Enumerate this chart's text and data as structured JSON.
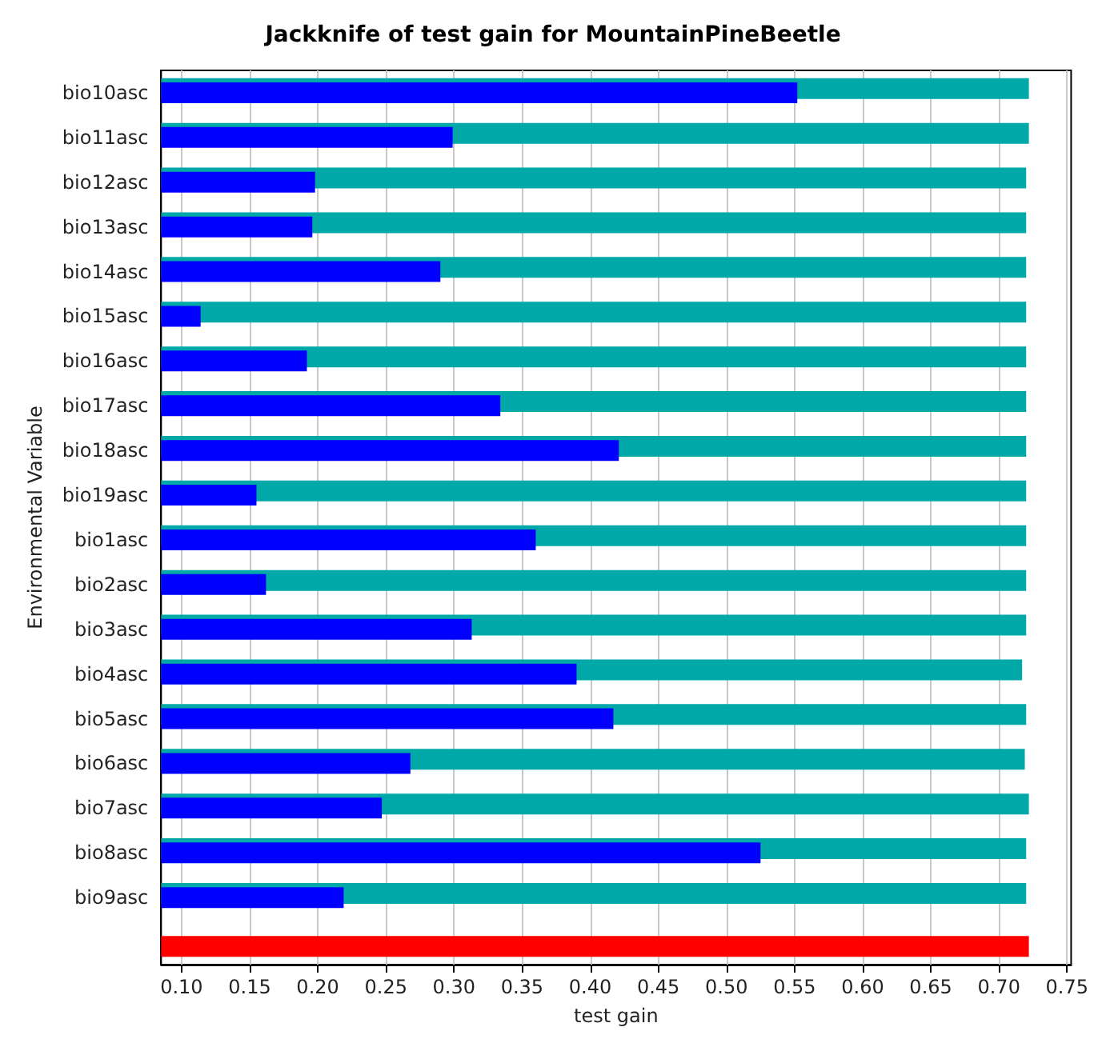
{
  "chart_data": {
    "type": "bar",
    "orientation": "horizontal",
    "title": "Jackknife of test gain for MountainPineBeetle",
    "xlabel": "test gain",
    "ylabel": "Environmental Variable",
    "categories": [
      "bio10asc",
      "bio11asc",
      "bio12asc",
      "bio13asc",
      "bio14asc",
      "bio15asc",
      "bio16asc",
      "bio17asc",
      "bio18asc",
      "bio19asc",
      "bio1asc",
      "bio2asc",
      "bio3asc",
      "bio4asc",
      "bio5asc",
      "bio6asc",
      "bio7asc",
      "bio8asc",
      "bio9asc",
      null
    ],
    "series": [
      {
        "color": "#00a8a8",
        "values": [
          0.722,
          0.722,
          0.72,
          0.72,
          0.72,
          0.72,
          0.72,
          0.72,
          0.72,
          0.72,
          0.72,
          0.72,
          0.72,
          0.717,
          0.72,
          0.719,
          0.722,
          0.72,
          0.72,
          null
        ]
      },
      {
        "color": "#0000ff",
        "values": [
          0.552,
          0.299,
          0.198,
          0.196,
          0.29,
          0.114,
          0.192,
          0.334,
          0.421,
          0.155,
          0.36,
          0.162,
          0.313,
          0.39,
          0.417,
          0.268,
          0.247,
          0.525,
          0.219,
          null
        ]
      },
      {
        "color": "#ff0000",
        "values": [
          null,
          null,
          null,
          null,
          null,
          null,
          null,
          null,
          null,
          null,
          null,
          null,
          null,
          null,
          null,
          null,
          null,
          null,
          null,
          0.722
        ]
      }
    ],
    "xlim": [
      0.085,
      0.753
    ],
    "xticks": [
      {
        "value": 0.1,
        "label": "0.10"
      },
      {
        "value": 0.15,
        "label": "0.15"
      },
      {
        "value": 0.2,
        "label": "0.20"
      },
      {
        "value": 0.25,
        "label": "0.25"
      },
      {
        "value": 0.3,
        "label": "0.30"
      },
      {
        "value": 0.35,
        "label": "0.35"
      },
      {
        "value": 0.4,
        "label": "0.40"
      },
      {
        "value": 0.45,
        "label": "0.45"
      },
      {
        "value": 0.5,
        "label": "0.50"
      },
      {
        "value": 0.55,
        "label": "0.55"
      },
      {
        "value": 0.6,
        "label": "0.60"
      },
      {
        "value": 0.65,
        "label": "0.65"
      },
      {
        "value": 0.7,
        "label": "0.70"
      },
      {
        "value": 0.75,
        "label": "0.75"
      }
    ],
    "grid": "x"
  }
}
